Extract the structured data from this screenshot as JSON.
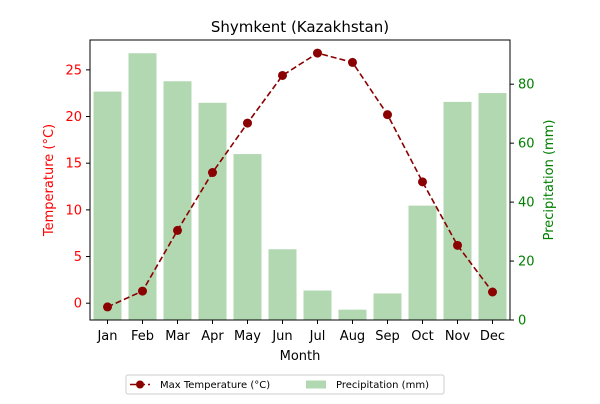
{
  "chart_data": {
    "type": "bar",
    "title": "Shymkent (Kazakhstan)",
    "xlabel": "Month",
    "ylabel_left": "Temperature (°C)",
    "ylabel_right": "Precipitation (mm)",
    "categories": [
      "Jan",
      "Feb",
      "Mar",
      "Apr",
      "May",
      "Jun",
      "Jul",
      "Aug",
      "Sep",
      "Oct",
      "Nov",
      "Dec"
    ],
    "series": [
      {
        "name": "Max Temperature (°C)",
        "type": "line",
        "axis": "left",
        "color": "#8b0000",
        "line_style": "dashed",
        "values": [
          -0.4,
          1.3,
          7.8,
          14.0,
          19.3,
          24.4,
          26.8,
          25.8,
          20.2,
          13.0,
          6.2,
          1.2
        ]
      },
      {
        "name": "Precipitation (mm)",
        "type": "bar",
        "axis": "right",
        "color": "#b2d8b2",
        "values": [
          77.5,
          90.5,
          81.0,
          73.7,
          56.3,
          24.0,
          10.0,
          3.5,
          9.0,
          38.8,
          74.0,
          77.0
        ]
      }
    ],
    "ylim_left": [
      -1.8,
      28.2
    ],
    "yticks_left": [
      0,
      5,
      10,
      15,
      20,
      25
    ],
    "ylim_right": [
      0,
      95
    ],
    "yticks_right": [
      0,
      20,
      40,
      60,
      80
    ],
    "left_axis_color": "#ff0000",
    "right_axis_color": "#008000",
    "grid": false,
    "legend_position": "bottom-center"
  }
}
